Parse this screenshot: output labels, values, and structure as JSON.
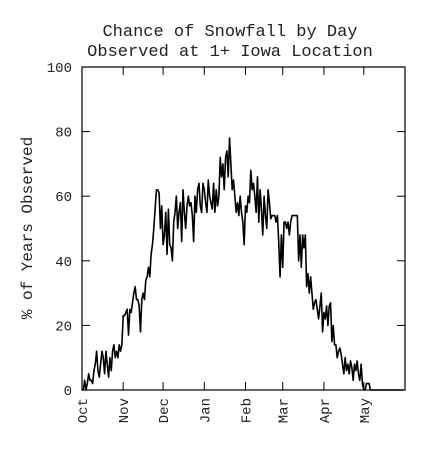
{
  "chart_data": {
    "type": "line",
    "title": "Chance of Snowfall by Day",
    "subtitle": "Observed at 1+ Iowa Location",
    "y_label": "% of Years Observed",
    "color": "#000000",
    "xlim": [
      0,
      243
    ],
    "xticks": [
      {
        "value": 0,
        "label": "Oct"
      },
      {
        "value": 31,
        "label": "Nov"
      },
      {
        "value": 61,
        "label": "Dec"
      },
      {
        "value": 92,
        "label": "Jan"
      },
      {
        "value": 123,
        "label": "Feb"
      },
      {
        "value": 151,
        "label": "Mar"
      },
      {
        "value": 182,
        "label": "Apr"
      },
      {
        "value": 212,
        "label": "May"
      }
    ],
    "ylim": [
      0,
      100
    ],
    "yticks": [
      0,
      20,
      40,
      60,
      80,
      100
    ],
    "values": [
      0,
      0,
      3,
      0,
      2,
      5,
      3,
      3,
      2,
      6,
      8,
      12,
      6,
      4,
      8,
      12,
      10,
      5,
      12,
      8,
      4,
      10,
      6,
      12,
      14,
      10,
      12,
      10,
      14,
      12,
      14,
      23,
      23,
      24,
      25,
      17,
      25,
      24,
      27,
      30,
      32,
      28,
      28,
      26,
      18,
      28,
      30,
      28,
      34,
      35,
      38,
      35,
      42,
      45,
      50,
      56,
      62,
      62,
      61,
      50,
      57,
      45,
      48,
      55,
      42,
      56,
      45,
      44,
      40,
      52,
      55,
      60,
      50,
      55,
      58,
      46,
      62,
      55,
      50,
      57,
      60,
      57,
      58,
      54,
      46,
      60,
      55,
      62,
      64,
      57,
      55,
      64,
      62,
      58,
      55,
      65,
      60,
      58,
      56,
      64,
      55,
      62,
      57,
      60,
      72,
      66,
      70,
      62,
      72,
      74,
      66,
      78,
      70,
      62,
      65,
      60,
      55,
      58,
      54,
      60,
      55,
      52,
      45,
      57,
      55,
      60,
      58,
      68,
      62,
      64,
      60,
      55,
      66,
      52,
      62,
      56,
      48,
      60,
      54,
      50,
      62,
      58,
      53,
      54,
      54,
      54,
      52,
      54,
      46,
      35,
      48,
      38,
      52,
      52,
      50,
      52,
      48,
      52,
      54,
      54,
      54,
      54,
      54,
      40,
      48,
      38,
      48,
      44,
      48,
      32,
      36,
      30,
      35,
      30,
      25,
      27,
      28,
      25,
      22,
      26,
      30,
      18,
      24,
      22,
      26,
      20,
      26,
      27,
      15,
      20,
      14,
      14,
      10,
      12,
      13,
      11,
      8,
      5,
      10,
      6,
      8,
      5,
      9,
      7,
      3,
      8,
      6,
      9,
      5,
      3,
      8,
      2,
      0,
      0,
      2,
      2,
      2,
      0,
      0,
      0,
      0,
      0,
      0,
      0,
      0,
      0,
      0,
      0,
      0,
      0,
      0,
      0,
      0,
      0,
      0,
      0,
      0,
      0,
      0,
      0,
      0,
      0,
      0
    ]
  }
}
